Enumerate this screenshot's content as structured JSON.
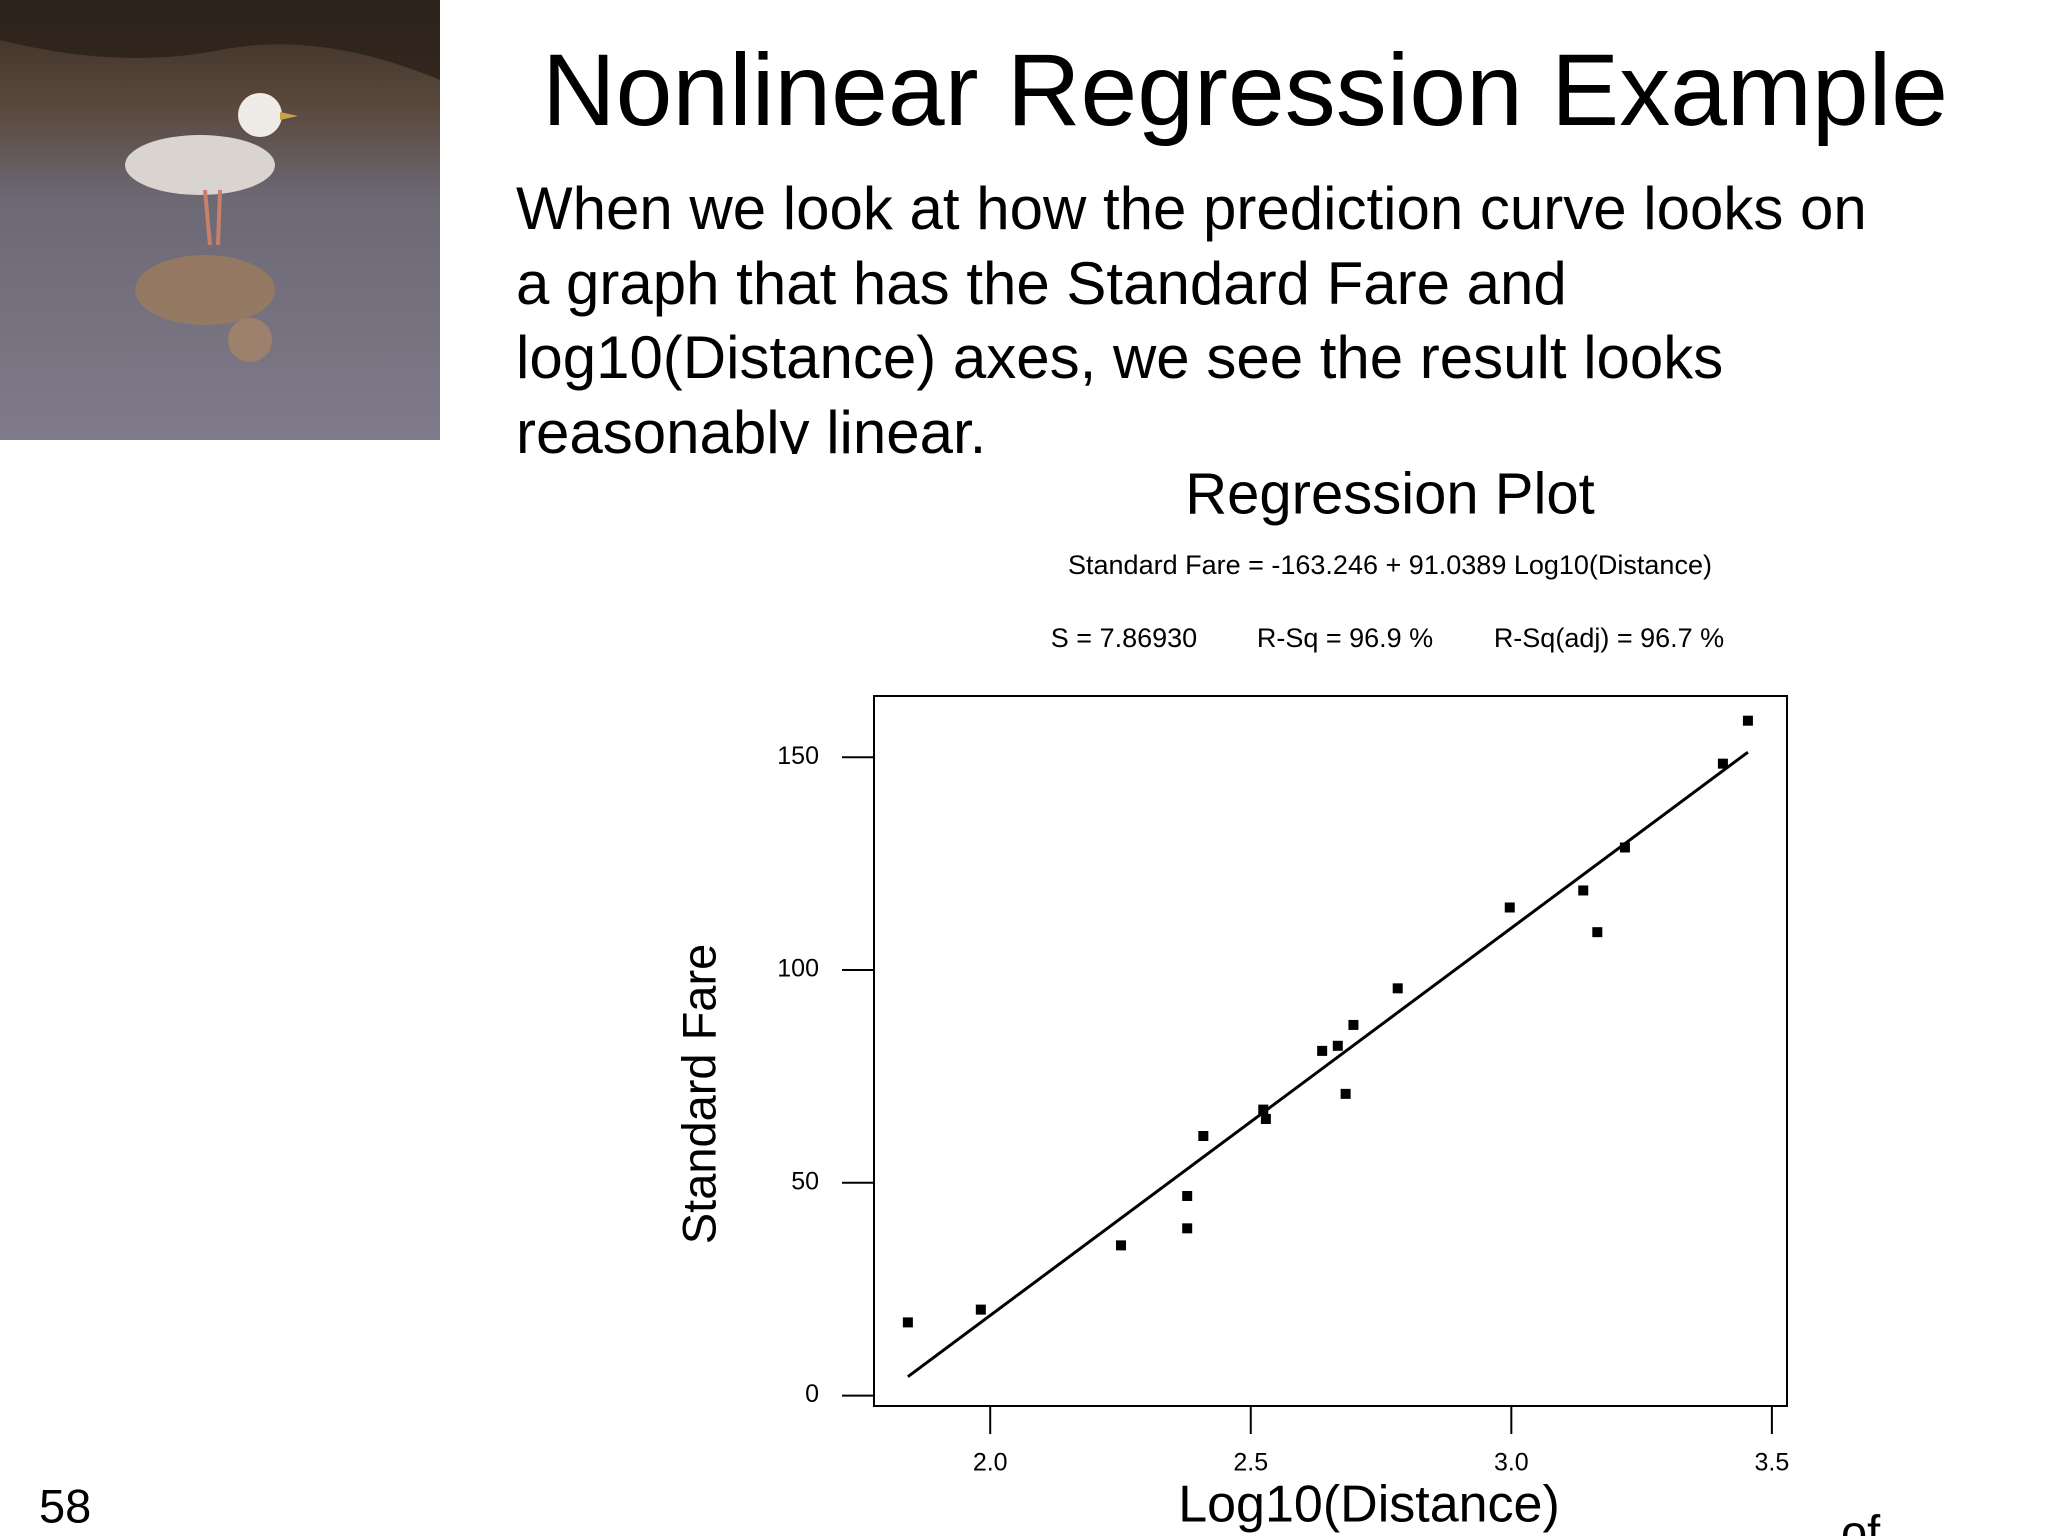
{
  "slide": {
    "title": "Nonlinear Regression Example",
    "body_lines": [
      "When we look at how the prediction curve looks on",
      "a graph that has the Standard Fare and",
      "log10(Distance) axes, we see the result looks",
      "reasonably linear."
    ],
    "page_number": "58",
    "footer_fragment": "of"
  },
  "chart_data": {
    "type": "scatter",
    "title": "Regression Plot",
    "subtitle": "Standard Fare = -163.246 + 91.0389 Log10(Distance)",
    "stats": [
      "S = 7.86930",
      "R-Sq = 96.9 %",
      "R-Sq(adj) = 96.7 %"
    ],
    "x_label": "Log10(Distance)",
    "y_label": "Standard Fare",
    "x": [
      1.842,
      1.982,
      2.251,
      2.378,
      2.378,
      2.409,
      2.524,
      2.529,
      2.637,
      2.667,
      2.682,
      2.697,
      2.782,
      2.997,
      3.138,
      3.165,
      3.218,
      3.406,
      3.454
    ],
    "y": [
      17.2,
      20.2,
      35.3,
      39.3,
      46.9,
      61.0,
      67.2,
      65.0,
      81.0,
      82.2,
      70.9,
      87.1,
      95.7,
      114.7,
      118.7,
      108.9,
      128.8,
      148.5,
      158.6
    ],
    "fit": {
      "intercept": -163.246,
      "slope": 91.0389
    },
    "color": "#000000",
    "xlim": [
      1.777,
      3.529
    ],
    "ylim": [
      -2.45,
      164.4
    ],
    "xticks": [
      {
        "value": 2,
        "label": "2.0"
      },
      {
        "value": 2.5,
        "label": "2.5"
      },
      {
        "value": 3,
        "label": "3.0"
      },
      {
        "value": 3.5,
        "label": "3.5"
      }
    ],
    "yticks": [
      0,
      50,
      100,
      150
    ]
  }
}
